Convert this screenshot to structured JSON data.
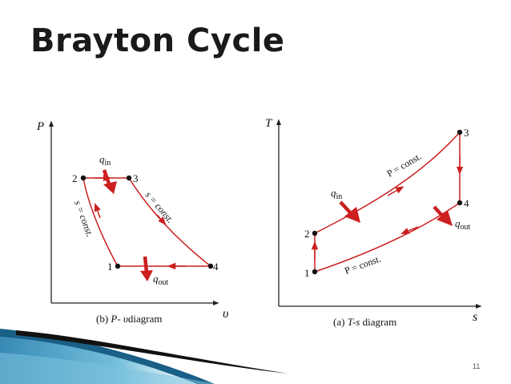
{
  "title": "Brayton Cycle",
  "page_number": "11",
  "colors": {
    "curve": "#cc1f1f",
    "axis": "#222222",
    "accent_blue": "#1f86b8"
  },
  "pv_diagram": {
    "y_axis": "P",
    "x_axis": "υ",
    "caption": {
      "prefix": "(b) ",
      "axes": "P- υ",
      "suffix": "diagram"
    },
    "points": [
      "1",
      "2",
      "3",
      "4"
    ],
    "q_in": {
      "sym": "q",
      "sub": "in"
    },
    "q_out": {
      "sym": "q",
      "sub": "out"
    },
    "s_const_left": "s = const.",
    "s_const_right": "s = const."
  },
  "ts_diagram": {
    "y_axis": "T",
    "x_axis": "s",
    "caption": {
      "prefix": "(a) ",
      "axes": "T-s",
      "suffix": " diagram"
    },
    "points": [
      "1",
      "2",
      "3",
      "4"
    ],
    "q_in": {
      "sym": "q",
      "sub": "in"
    },
    "q_out": {
      "sym": "q",
      "sub": "out"
    },
    "p_const_upper": "P = const.",
    "p_const_lower": "P = const."
  }
}
